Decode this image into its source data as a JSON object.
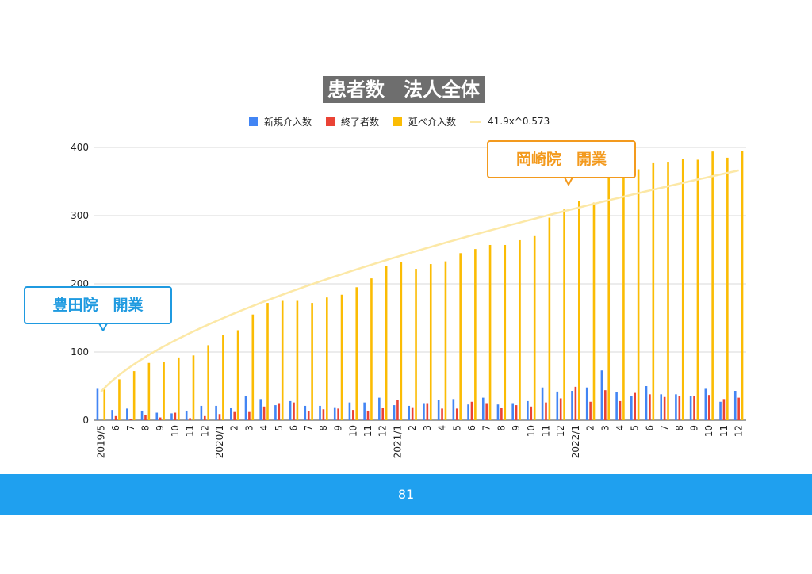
{
  "page": {
    "page_number": "81"
  },
  "annotations": {
    "toyoda": "豊田院　開業",
    "okazaki": "岡崎院　開業"
  },
  "colors": {
    "new": "#4285f4",
    "ended": "#ea4335",
    "cumulative": "#fbbc04",
    "trend": "#fce8a6",
    "toyoda_callout": "#1f9ae0",
    "okazaki_callout": "#f39a1e",
    "footer": "#1fa0ef"
  },
  "chart_data": {
    "type": "bar",
    "title": "患者数　法人全体",
    "legend_position": "top",
    "grid": true,
    "ylim": [
      0,
      400
    ],
    "yticks": [
      "0",
      "100",
      "200",
      "300",
      "400"
    ],
    "categories": [
      "2019/5",
      "6",
      "7",
      "8",
      "9",
      "10",
      "11",
      "12",
      "2020/1",
      "2",
      "3",
      "4",
      "5",
      "6",
      "7",
      "8",
      "9",
      "10",
      "11",
      "12",
      "2021/1",
      "2",
      "3",
      "4",
      "5",
      "6",
      "7",
      "8",
      "9",
      "10",
      "11",
      "12",
      "2022/1",
      "2",
      "3",
      "4",
      "5",
      "6",
      "7",
      "8",
      "9",
      "10",
      "11",
      "12"
    ],
    "series": [
      {
        "name": "新規介入数",
        "values": [
          46,
          15,
          17,
          14,
          11,
          10,
          14,
          21,
          21,
          18,
          35,
          31,
          22,
          28,
          21,
          21,
          19,
          26,
          26,
          33,
          22,
          21,
          25,
          30,
          31,
          23,
          33,
          23,
          25,
          28,
          48,
          42,
          43,
          48,
          73,
          41,
          35,
          50,
          38,
          38,
          35,
          46,
          27,
          43
        ]
      },
      {
        "name": "終了者数",
        "values": [
          0,
          6,
          2,
          7,
          4,
          11,
          3,
          6,
          9,
          12,
          12,
          20,
          25,
          26,
          13,
          16,
          17,
          15,
          14,
          18,
          30,
          19,
          25,
          17,
          17,
          27,
          25,
          18,
          22,
          20,
          26,
          32,
          49,
          27,
          44,
          28,
          40,
          38,
          34,
          35,
          35,
          37,
          31,
          33
        ]
      },
      {
        "name": "延べ介入数",
        "values": [
          46,
          60,
          72,
          84,
          86,
          92,
          95,
          110,
          125,
          132,
          155,
          172,
          175,
          175,
          172,
          180,
          184,
          195,
          208,
          226,
          232,
          222,
          229,
          233,
          245,
          251,
          257,
          257,
          264,
          270,
          297,
          309,
          322,
          319,
          366,
          369,
          368,
          378,
          379,
          383,
          382,
          394,
          385,
          395
        ]
      }
    ],
    "trendline": {
      "name": "41.9x^0.573",
      "coefficient": 41.9,
      "exponent": 0.573
    }
  }
}
